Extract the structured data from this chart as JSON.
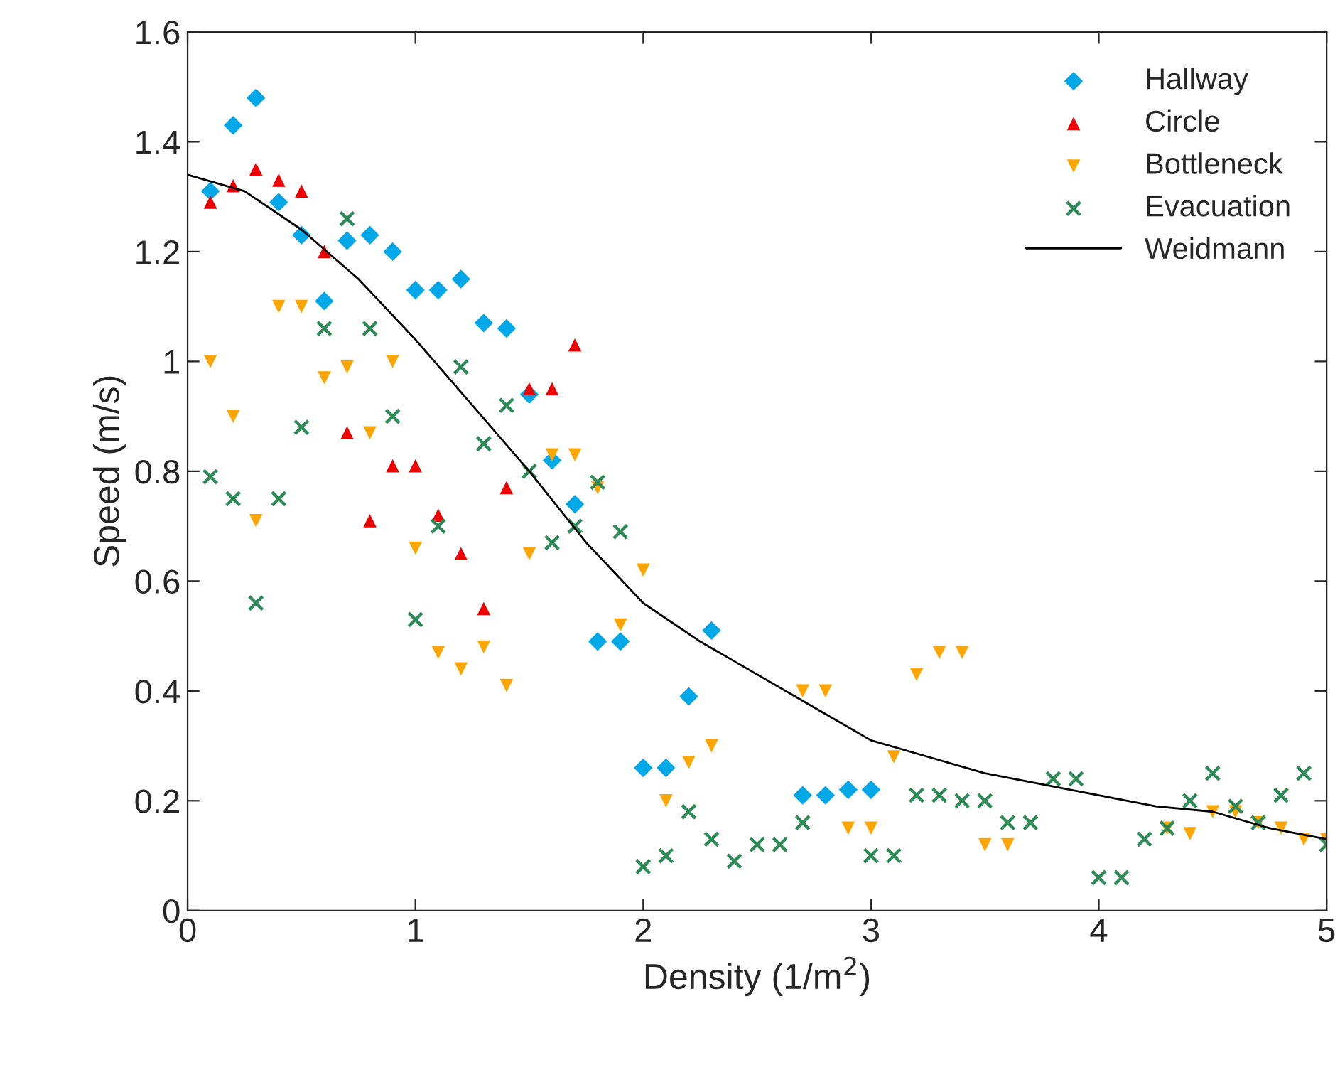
{
  "chart_data": {
    "type": "scatter",
    "xlabel": "Density (1/m$^{2}$)",
    "ylabel": "Speed (m/s)",
    "xlim": [
      0,
      5
    ],
    "ylim": [
      0,
      1.6
    ],
    "xticks": [
      0,
      1,
      2,
      3,
      4,
      5
    ],
    "yticks": [
      0,
      0.2,
      0.4,
      0.6,
      0.8,
      1,
      1.2,
      1.4,
      1.6
    ],
    "grid": false,
    "legend": "top right",
    "series": [
      {
        "name": "Hallway",
        "marker": "diamond",
        "color": "#00a8e8",
        "x": [
          0.1,
          0.2,
          0.3,
          0.4,
          0.5,
          0.6,
          0.7,
          0.8,
          0.9,
          1.0,
          1.1,
          1.2,
          1.3,
          1.4,
          1.5,
          1.6,
          1.7,
          1.8,
          1.9,
          2.0,
          2.1,
          2.2,
          2.3,
          2.7,
          2.8,
          2.9,
          3.0
        ],
        "values": [
          1.31,
          1.43,
          1.48,
          1.29,
          1.23,
          1.11,
          1.22,
          1.23,
          1.2,
          1.13,
          1.13,
          1.15,
          1.07,
          1.06,
          0.94,
          0.82,
          0.74,
          0.49,
          0.49,
          0.26,
          0.26,
          0.39,
          0.51,
          0.21,
          0.21,
          0.22,
          0.22
        ]
      },
      {
        "name": "Circle",
        "marker": "triangle",
        "color": "#ee0000",
        "x": [
          0.1,
          0.2,
          0.3,
          0.4,
          0.5,
          0.6,
          0.7,
          0.8,
          0.9,
          1.0,
          1.1,
          1.2,
          1.3,
          1.4,
          1.5,
          1.6,
          1.7
        ],
        "values": [
          1.29,
          1.32,
          1.35,
          1.33,
          1.31,
          1.2,
          0.87,
          0.71,
          0.81,
          0.81,
          0.72,
          0.65,
          0.55,
          0.77,
          0.95,
          0.95,
          1.03
        ]
      },
      {
        "name": "Bottleneck",
        "marker": "triangle_down",
        "color": "#ffa500",
        "x": [
          0.1,
          0.2,
          0.3,
          0.4,
          0.5,
          0.6,
          0.7,
          0.8,
          0.9,
          1.0,
          1.1,
          1.2,
          1.3,
          1.4,
          1.5,
          1.6,
          1.7,
          1.8,
          1.9,
          2.0,
          2.1,
          2.2,
          2.3,
          2.7,
          2.8,
          2.9,
          3.0,
          3.1,
          3.2,
          3.3,
          3.4,
          3.5,
          3.6,
          4.3,
          4.4,
          4.5,
          4.6,
          4.7,
          4.8,
          4.9,
          5.0
        ],
        "values": [
          1.0,
          0.9,
          0.71,
          1.1,
          1.1,
          0.97,
          0.99,
          0.87,
          1.0,
          0.66,
          0.47,
          0.44,
          0.48,
          0.41,
          0.65,
          0.83,
          0.83,
          0.77,
          0.52,
          0.62,
          0.2,
          0.27,
          0.3,
          0.4,
          0.4,
          0.15,
          0.15,
          0.28,
          0.43,
          0.47,
          0.47,
          0.12,
          0.12,
          0.15,
          0.14,
          0.18,
          0.18,
          0.16,
          0.15,
          0.13,
          0.13
        ]
      },
      {
        "name": "Evacuation",
        "marker": "cross",
        "color": "#2e8b57",
        "x": [
          0.1,
          0.2,
          0.3,
          0.4,
          0.5,
          0.6,
          0.7,
          0.8,
          0.9,
          1.0,
          1.1,
          1.2,
          1.3,
          1.4,
          1.5,
          1.6,
          1.7,
          1.8,
          1.9,
          2.0,
          2.1,
          2.2,
          2.3,
          2.4,
          2.5,
          2.6,
          2.7,
          3.0,
          3.1,
          3.2,
          3.3,
          3.4,
          3.5,
          3.6,
          3.7,
          3.8,
          3.9,
          4.0,
          4.1,
          4.2,
          4.3,
          4.4,
          4.5,
          4.6,
          4.7,
          4.8,
          4.9,
          5.0
        ],
        "values": [
          0.79,
          0.75,
          0.56,
          0.75,
          0.88,
          1.06,
          1.26,
          1.06,
          0.9,
          0.53,
          0.7,
          0.99,
          0.85,
          0.92,
          0.8,
          0.67,
          0.7,
          0.78,
          0.69,
          0.08,
          0.1,
          0.18,
          0.13,
          0.09,
          0.12,
          0.12,
          0.16,
          0.1,
          0.1,
          0.21,
          0.21,
          0.2,
          0.2,
          0.16,
          0.16,
          0.24,
          0.24,
          0.06,
          0.06,
          0.13,
          0.15,
          0.2,
          0.25,
          0.19,
          0.16,
          0.21,
          0.25,
          0.12
        ]
      },
      {
        "name": "Weidmann",
        "type": "line",
        "marker": "none",
        "line_style": "solid",
        "color": "#000000",
        "x": [
          0,
          0.25,
          0.5,
          0.75,
          1,
          1.25,
          1.5,
          1.75,
          2,
          2.25,
          2.5,
          2.75,
          3,
          3.25,
          3.5,
          3.75,
          4,
          4.25,
          4.5,
          4.75,
          5
        ],
        "values": [
          1.34,
          1.31,
          1.24,
          1.15,
          1.04,
          0.92,
          0.8,
          0.67,
          0.56,
          0.49,
          0.43,
          0.37,
          0.31,
          0.28,
          0.25,
          0.23,
          0.21,
          0.19,
          0.18,
          0.15,
          0.13
        ]
      }
    ]
  }
}
